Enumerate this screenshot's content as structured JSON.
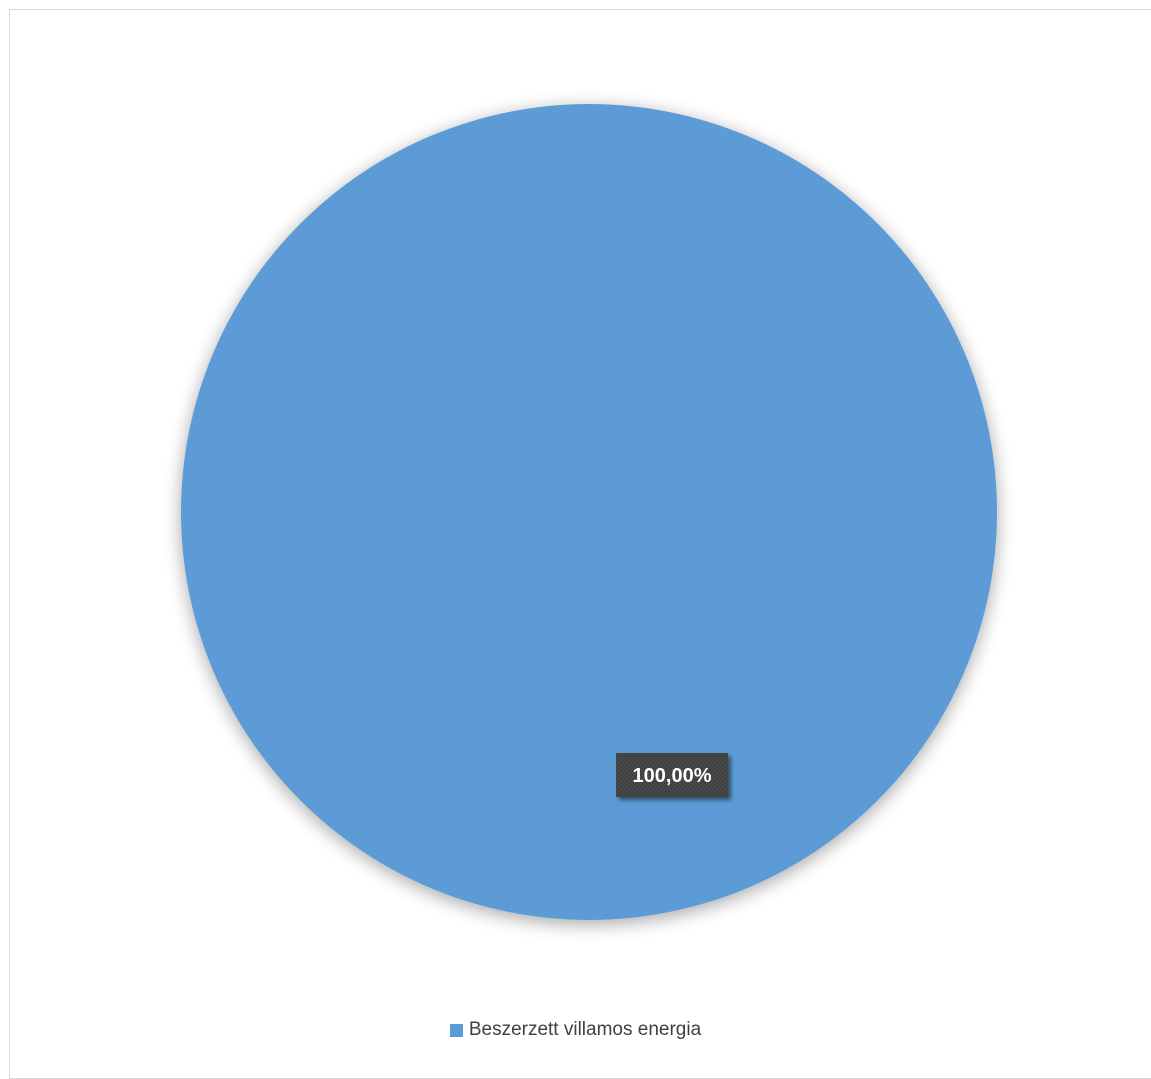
{
  "chart_data": {
    "type": "pie",
    "title": "",
    "categories": [
      "Beszerzett villamos energia"
    ],
    "values": [
      100.0
    ],
    "data_labels": [
      "100,00%"
    ],
    "colors": [
      "#5b9bd5"
    ],
    "legend_position": "bottom"
  },
  "legend": {
    "items": [
      {
        "label": "Beszerzett villamos energia",
        "color": "#5b9bd5"
      }
    ]
  }
}
